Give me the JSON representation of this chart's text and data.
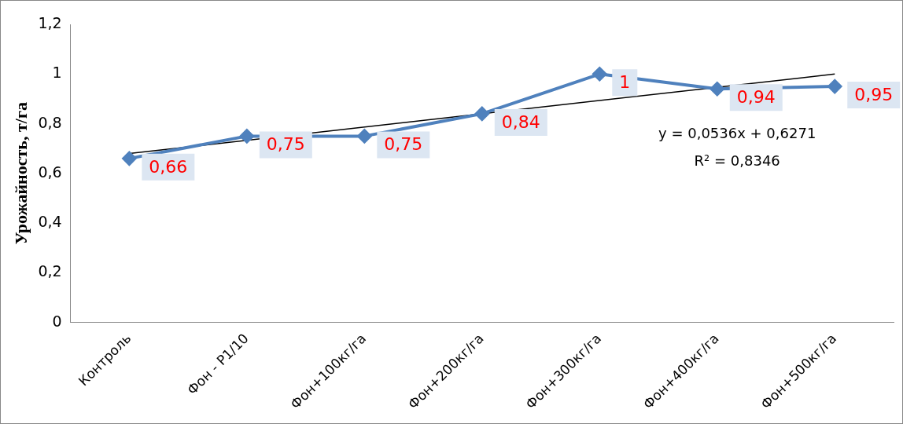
{
  "chart_data": {
    "type": "line",
    "ylabel": "Урожайность, т/га",
    "categories": [
      "Контроль",
      "Фон - P1/10",
      "Фон+100кг/га",
      "Фон+200кг/га",
      "Фон+300кг/га",
      "Фон+400кг/га",
      "Фон+500кг/га"
    ],
    "series": [
      {
        "color": "#4f81bd",
        "values": [
          0.66,
          0.75,
          0.75,
          0.84,
          1,
          0.94,
          0.95
        ],
        "marker": "diamond",
        "value_labels": [
          "0,66",
          "0,75",
          "0,75",
          "0,84",
          "1",
          "0,94",
          "0,95"
        ]
      },
      {
        "type": "line",
        "color": "#000000",
        "x": [
          "Контроль",
          "Фон+500кг/га"
        ],
        "values": [
          0.68,
          1.0
        ],
        "marker": "none"
      }
    ],
    "ylim": [
      0,
      1.2
    ],
    "yticks": [
      0,
      {
        "value": 0.2,
        "label": "0,2"
      },
      {
        "value": 0.4,
        "label": "0,4"
      },
      {
        "value": 0.6,
        "label": "0,6"
      },
      {
        "value": 0.8,
        "label": "0,8"
      },
      1,
      {
        "value": 1.2,
        "label": "1,2"
      }
    ],
    "grid": false,
    "legend": false,
    "annotations": [
      "y = 0,0536x + 0,6271",
      "R² = 0,8346"
    ]
  }
}
